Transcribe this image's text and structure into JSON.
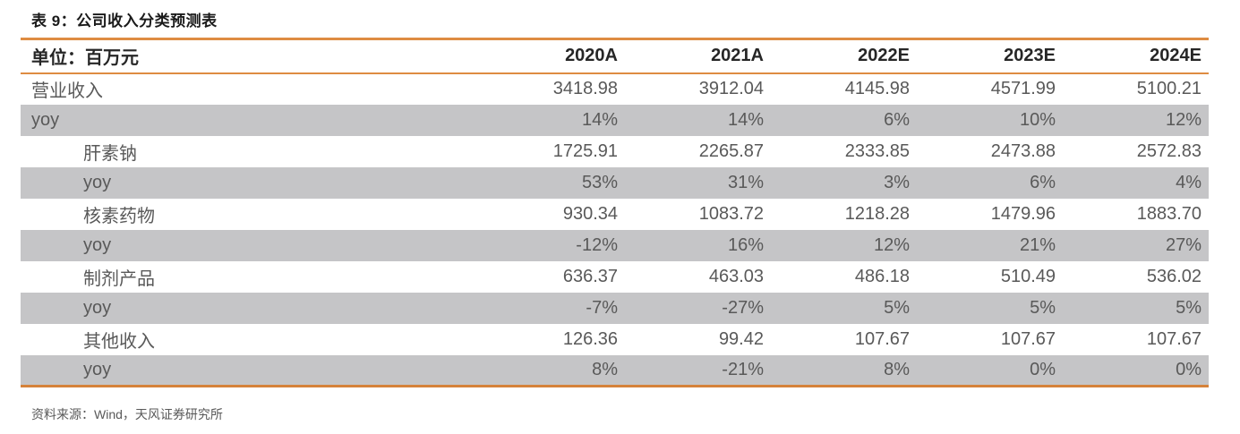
{
  "title": "表 9：公司收入分类预测表",
  "table": {
    "unit_label": "单位：百万元",
    "columns": [
      "2020A",
      "2021A",
      "2022E",
      "2023E",
      "2024E"
    ],
    "rows": [
      {
        "label": "营业收入",
        "indent": 0,
        "shaded": false,
        "values": [
          "3418.98",
          "3912.04",
          "4145.98",
          "4571.99",
          "5100.21"
        ]
      },
      {
        "label": "yoy",
        "indent": 0,
        "shaded": true,
        "values": [
          "14%",
          "14%",
          "6%",
          "10%",
          "12%"
        ]
      },
      {
        "label": "肝素钠",
        "indent": 1,
        "shaded": false,
        "values": [
          "1725.91",
          "2265.87",
          "2333.85",
          "2473.88",
          "2572.83"
        ]
      },
      {
        "label": "yoy",
        "indent": 1,
        "shaded": true,
        "values": [
          "53%",
          "31%",
          "3%",
          "6%",
          "4%"
        ]
      },
      {
        "label": "核素药物",
        "indent": 1,
        "shaded": false,
        "values": [
          "930.34",
          "1083.72",
          "1218.28",
          "1479.96",
          "1883.70"
        ]
      },
      {
        "label": "yoy",
        "indent": 1,
        "shaded": true,
        "values": [
          "-12%",
          "16%",
          "12%",
          "21%",
          "27%"
        ]
      },
      {
        "label": "制剂产品",
        "indent": 1,
        "shaded": false,
        "values": [
          "636.37",
          "463.03",
          "486.18",
          "510.49",
          "536.02"
        ]
      },
      {
        "label": "yoy",
        "indent": 1,
        "shaded": true,
        "values": [
          "-7%",
          "-27%",
          "5%",
          "5%",
          "5%"
        ]
      },
      {
        "label": "其他收入",
        "indent": 1,
        "shaded": false,
        "values": [
          "126.36",
          "99.42",
          "107.67",
          "107.67",
          "107.67"
        ]
      },
      {
        "label": "yoy",
        "indent": 1,
        "shaded": true,
        "values": [
          "8%",
          "-21%",
          "8%",
          "0%",
          "0%"
        ]
      }
    ]
  },
  "source": "资料来源：Wind，天风证券研究所",
  "colors": {
    "accent_orange": "#de8c42",
    "bottom_rule_orange": "#d5823a",
    "row_shade_gray": "#c5c5c7",
    "header_text": "#262626",
    "body_text": "#595959",
    "title_text": "#1a1a1a"
  }
}
